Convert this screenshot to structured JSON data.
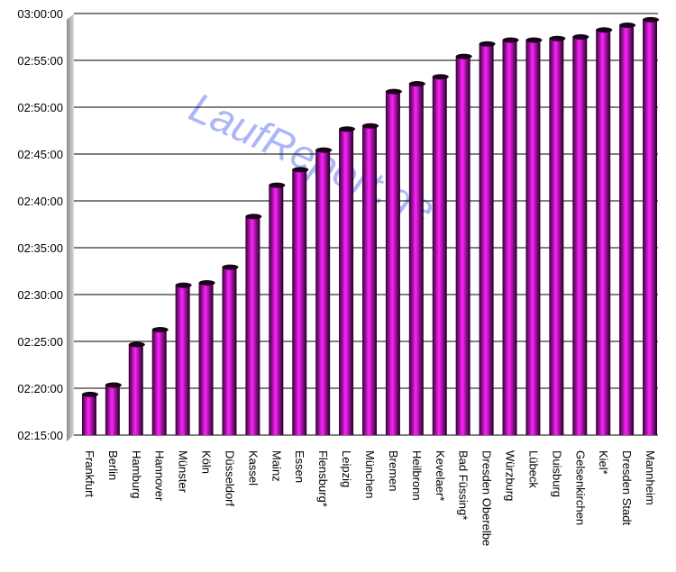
{
  "chart_data": {
    "type": "bar",
    "watermark": "LaufReport.de",
    "categories": [
      "Frankfurt",
      "Berlin",
      "Hamburg",
      "Hannover",
      "Münster",
      "Köln",
      "Düsseldorf",
      "Kassel",
      "Mainz",
      "Essen",
      "Flensburg*",
      "Leipzig",
      "München",
      "Bremen",
      "Heilbronn",
      "Kevelaer*",
      "Bad Füssing*",
      "Dresden Oberelbe",
      "Würzburg",
      "Lübeck",
      "Duisburg",
      "Gelsenkirchen",
      "Kiel*",
      "Dresden Stadt",
      "Mannheim"
    ],
    "values": [
      8360,
      8420,
      8680,
      8775,
      9060,
      9075,
      9175,
      9500,
      9700,
      9800,
      9925,
      10060,
      10080,
      10300,
      10350,
      10395,
      10525,
      10605,
      10630,
      10630,
      10640,
      10650,
      10695,
      10725,
      10760
    ],
    "color": "#ff22ff",
    "ylim": [
      8100,
      10800
    ],
    "yticks": [
      {
        "value": 8100,
        "label": "02:15:00"
      },
      {
        "value": 8400,
        "label": "02:20:00"
      },
      {
        "value": 8700,
        "label": "02:25:00"
      },
      {
        "value": 9000,
        "label": "02:30:00"
      },
      {
        "value": 9300,
        "label": "02:35:00"
      },
      {
        "value": 9600,
        "label": "02:40:00"
      },
      {
        "value": 9900,
        "label": "02:45:00"
      },
      {
        "value": 10200,
        "label": "02:50:00"
      },
      {
        "value": 10500,
        "label": "02:55:00"
      },
      {
        "value": 10800,
        "label": "03:00:00"
      }
    ],
    "grid": true
  }
}
